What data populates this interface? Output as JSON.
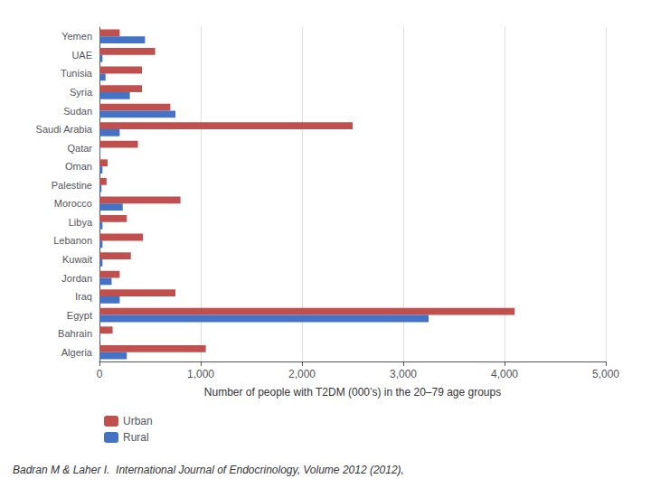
{
  "chart_data": {
    "type": "bar",
    "orientation": "horizontal",
    "categories": [
      "Algeria",
      "Bahrain",
      "Egypt",
      "Iraq",
      "Jordan",
      "Kuwait",
      "Lebanon",
      "Libya",
      "Morocco",
      "Palestine",
      "Oman",
      "Qatar",
      "Saudi Arabia",
      "Sudan",
      "Syria",
      "Tunisia",
      "UAE",
      "Yemen"
    ],
    "series": [
      {
        "name": "Urban",
        "color": "#C0504D",
        "values": [
          1050,
          130,
          4100,
          750,
          200,
          310,
          430,
          270,
          800,
          70,
          80,
          380,
          2500,
          700,
          420,
          420,
          550,
          200
        ]
      },
      {
        "name": "Rural",
        "color": "#4472C4",
        "values": [
          270,
          10,
          3250,
          200,
          120,
          30,
          30,
          30,
          230,
          20,
          30,
          10,
          200,
          750,
          300,
          60,
          30,
          450
        ]
      }
    ],
    "xlabel": "Number of people with T2DM (000’s) in the 20–79 age groups",
    "xlim": [
      0,
      5000
    ],
    "xticks": [
      0,
      1000,
      2000,
      3000,
      4000,
      5000
    ],
    "grid": true,
    "legend": "lower left",
    "annotations": [
      "Badran M & Laher I.  International Journal of Endocrinology, Volume 2012 (2012),"
    ]
  }
}
